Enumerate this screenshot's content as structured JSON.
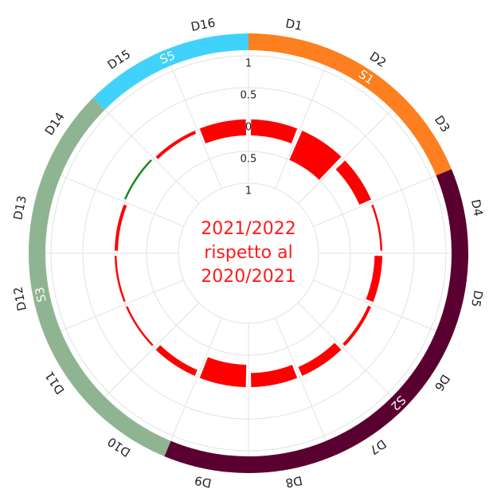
{
  "chart_data": {
    "type": "radial-bar",
    "center_text": [
      "2021/2022",
      "rispetto al",
      "2020/2021"
    ],
    "groups": [
      {
        "name": "S1",
        "color": "#fd7f1f",
        "categories": [
          "D1",
          "D2",
          "D3"
        ],
        "values": [
          -0.25,
          -0.5,
          -0.2
        ]
      },
      {
        "name": "S2",
        "color": "#5a0030",
        "categories": [
          "D4",
          "D5",
          "D6",
          "D7",
          "D8",
          "D9"
        ],
        "values": [
          -0.03,
          -0.12,
          -0.05,
          -0.15,
          -0.22,
          -0.35
        ]
      },
      {
        "name": "S3",
        "color": "#8fb491",
        "categories": [
          "D10",
          "D11",
          "D12",
          "D13",
          "D14"
        ],
        "values": [
          -0.1,
          -0.03,
          -0.03,
          -0.05,
          0.03
        ]
      },
      {
        "name": "S5",
        "color": "#40d2fb",
        "categories": [
          "D15",
          "D16"
        ],
        "values": [
          -0.05,
          -0.25
        ]
      }
    ],
    "positive_color": "#138a13",
    "negative_color": "#ff0000",
    "ylim": [
      -1,
      1
    ],
    "yticks": [
      {
        "value": 1,
        "label": "1"
      },
      {
        "value": 0.5,
        "label": "0.5"
      },
      0,
      {
        "value": -0.5,
        "label": "0.5"
      },
      {
        "value": -1,
        "label": "1"
      }
    ]
  }
}
